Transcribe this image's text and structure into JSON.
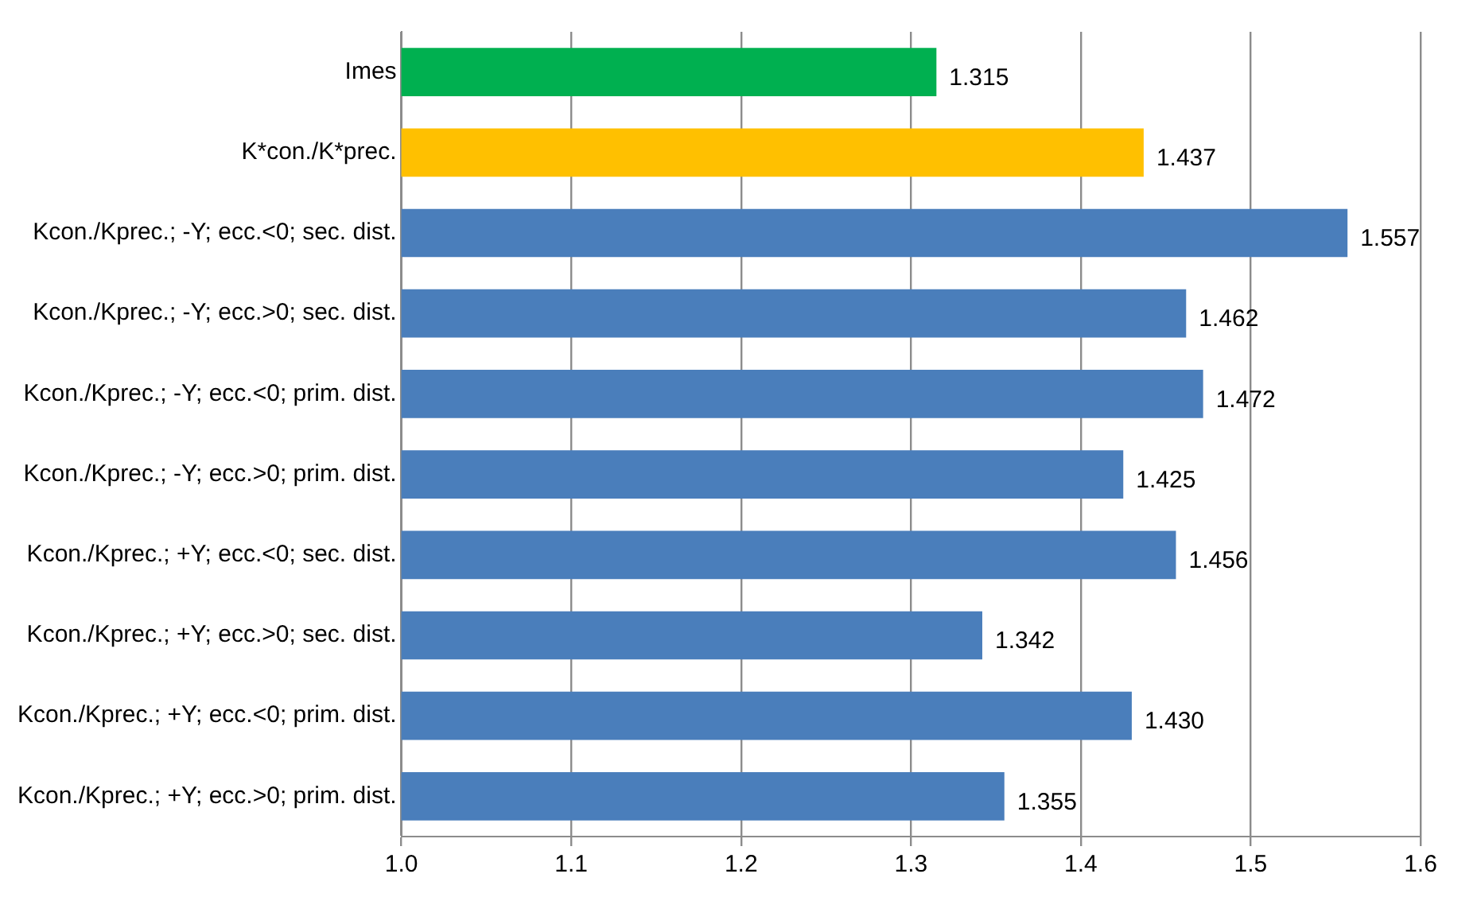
{
  "chart_data": {
    "type": "bar",
    "orientation": "horizontal",
    "categories": [
      "Imes",
      "K*con./K*prec.",
      "Kcon./Kprec.; -Y; ecc.<0; sec. dist.",
      "Kcon./Kprec.; -Y; ecc.>0; sec. dist.",
      "Kcon./Kprec.; -Y; ecc.<0; prim. dist.",
      "Kcon./Kprec.; -Y; ecc.>0; prim. dist.",
      "Kcon./Kprec.; +Y; ecc.<0; sec. dist.",
      "Kcon./Kprec.; +Y; ecc.>0; sec. dist.",
      "Kcon./Kprec.; +Y; ecc.<0; prim. dist.",
      "Kcon./Kprec.; +Y; ecc.>0; prim. dist."
    ],
    "values": [
      1.315,
      1.437,
      1.557,
      1.462,
      1.472,
      1.425,
      1.456,
      1.342,
      1.43,
      1.355
    ],
    "value_labels": [
      "1.315",
      "1.437",
      "1.557",
      "1.462",
      "1.472",
      "1.425",
      "1.456",
      "1.342",
      "1.430",
      "1.355"
    ],
    "colors": [
      "#00b050",
      "#ffc000",
      "#4a7ebb",
      "#4a7ebb",
      "#4a7ebb",
      "#4a7ebb",
      "#4a7ebb",
      "#4a7ebb",
      "#4a7ebb",
      "#4a7ebb"
    ],
    "xlim": [
      1.0,
      1.6
    ],
    "xticks": [
      {
        "value": 1.0,
        "label": "1.0"
      },
      {
        "value": 1.1,
        "label": "1.1"
      },
      {
        "value": 1.2,
        "label": "1.2"
      },
      {
        "value": 1.3,
        "label": "1.3"
      },
      {
        "value": 1.4,
        "label": "1.4"
      },
      {
        "value": 1.5,
        "label": "1.5"
      },
      {
        "value": 1.6,
        "label": "1.6"
      }
    ],
    "grid": "x",
    "legend": false
  }
}
